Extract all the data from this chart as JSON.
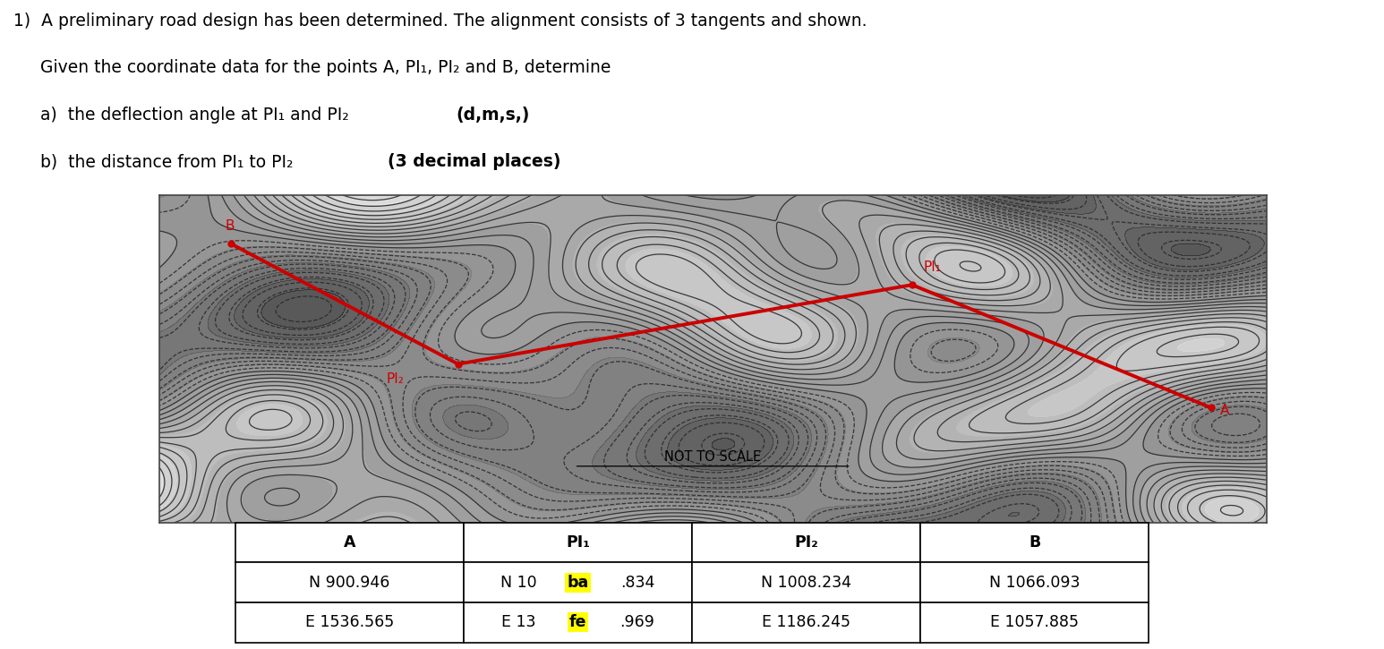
{
  "bg_color": "#ffffff",
  "text_color": "#000000",
  "red_color": "#cc0000",
  "highlight_color": "#ffff00",
  "title_line1": "1)  A preliminary road design has been determined. The alignment consists of 3 tangents and shown.",
  "title_line2": "     Given the coordinate data for the points A, PI₁, PI₂ and B, determine",
  "title_line3_normal": "     a)  the deflection angle at PI₁ and PI₂ ",
  "title_line3_bold": "(d,m,s,)",
  "title_line4_normal": "     b)  the distance from PI₁ to PI₂ ",
  "title_line4_bold": "(3 decimal places)",
  "table_headers": [
    "A",
    "PI₁",
    "PI₂",
    "B"
  ],
  "table_row1_A": "N 900.946",
  "table_row1_PI1_before": "N 10",
  "table_row1_PI1_hl": "ba",
  "table_row1_PI1_after": ".834",
  "table_row1_PI2": "N 1008.234",
  "table_row1_B": "N 1066.093",
  "table_row2_A": "E 1536.565",
  "table_row2_PI1_before": "E 13",
  "table_row2_PI1_hl": "fe",
  "table_row2_PI1_after": ".969",
  "table_row2_PI2": "E 1186.245",
  "table_row2_B": "E 1057.885",
  "not_to_scale": "NOT TO SCALE",
  "label_B": "B",
  "label_PI1": "PI₁",
  "label_PI2": "PI₂",
  "label_A": "A"
}
